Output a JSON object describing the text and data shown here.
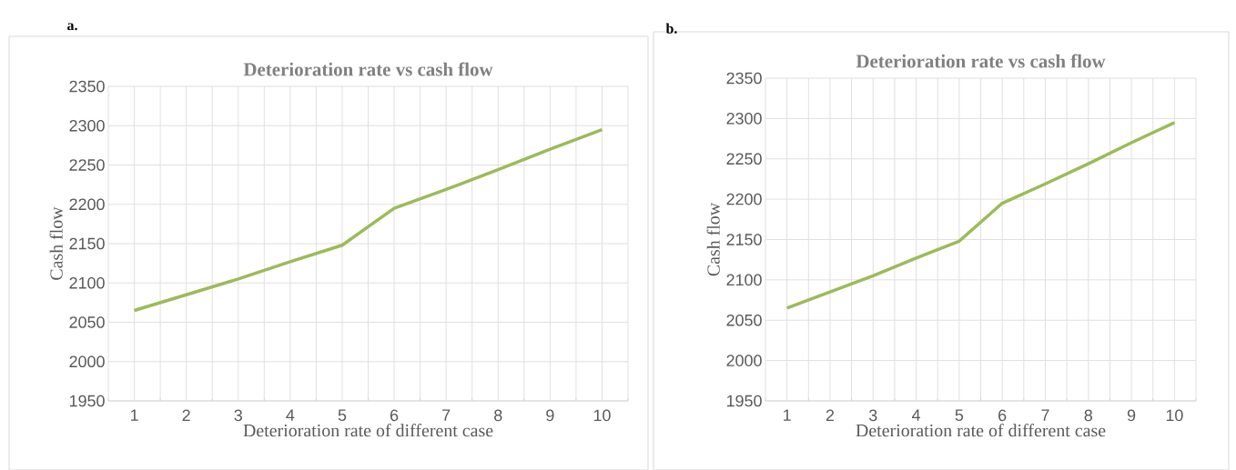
{
  "chart_data": [
    {
      "type": "line",
      "title": "Deterioration rate vs cash flow",
      "xlabel": "Deterioration rate of different case",
      "ylabel": "Cash flow",
      "annotations": [
        "a."
      ],
      "categories": [
        "1",
        "2",
        "3",
        "4",
        "5",
        "6",
        "7",
        "8",
        "9",
        "10"
      ],
      "series": [
        {
          "color": "#9bbb59",
          "values": [
            2065,
            2085,
            2105,
            2127,
            2148,
            2195,
            2219,
            2244,
            2270,
            2295
          ]
        }
      ],
      "ylim": [
        1950,
        2350
      ],
      "yticks": [
        1950,
        2000,
        2050,
        2100,
        2150,
        2200,
        2250,
        2300,
        2350
      ],
      "grid": true
    },
    {
      "type": "line",
      "title": "Deterioration rate vs cash flow",
      "xlabel": "Deterioration rate of different case",
      "ylabel": "Cash flow",
      "annotations": [
        "b."
      ],
      "categories": [
        "1",
        "2",
        "3",
        "4",
        "5",
        "6",
        "7",
        "8",
        "9",
        "10"
      ],
      "series": [
        {
          "color": "#9bbb59",
          "values": [
            2065,
            2085,
            2105,
            2127,
            2148,
            2195,
            2219,
            2244,
            2270,
            2295
          ]
        }
      ],
      "ylim": [
        1950,
        2350
      ],
      "yticks": [
        1950,
        2000,
        2050,
        2100,
        2150,
        2200,
        2250,
        2300,
        2350
      ],
      "grid": true
    }
  ]
}
